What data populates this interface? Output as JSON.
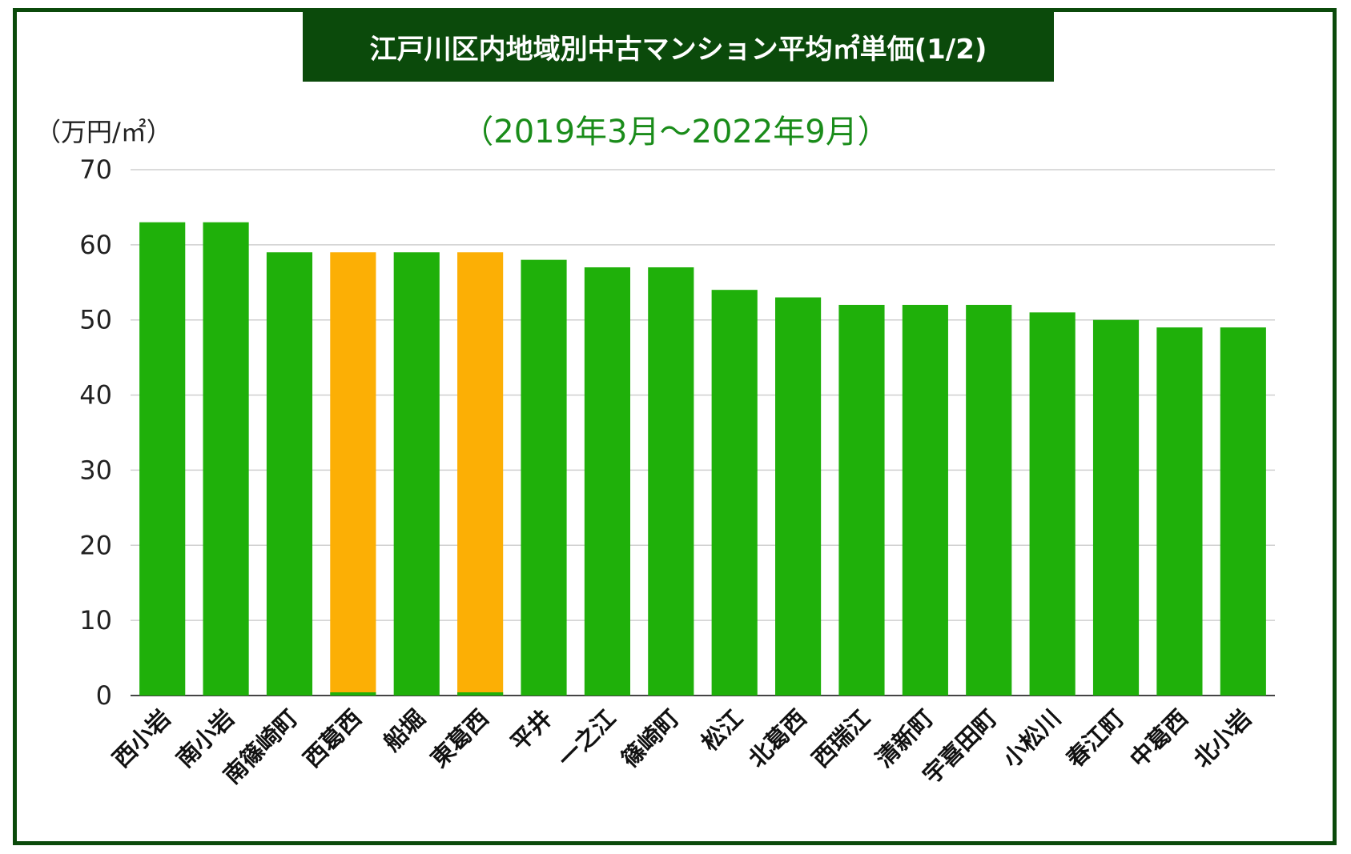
{
  "chart_data": {
    "type": "bar",
    "title": "江戸川区内地域別中古マンション平均㎡単価(1/2)",
    "subtitle": "（2019年3月〜2022年9月）",
    "ylabel": "（万円/㎡）",
    "ylim": [
      0,
      70
    ],
    "yticks": [
      "0",
      "10",
      "20",
      "30",
      "40",
      "50",
      "60",
      "70"
    ],
    "grid": true,
    "categories": [
      "西小岩",
      "南小岩",
      "南篠崎町",
      "西葛西",
      "船堀",
      "東葛西",
      "平井",
      "一之江",
      "篠崎町",
      "松江",
      "北葛西",
      "西瑞江",
      "清新町",
      "宇喜田町",
      "小松川",
      "春江町",
      "中葛西",
      "北小岩"
    ],
    "values": [
      63,
      63,
      59,
      59,
      59,
      59,
      58,
      57,
      57,
      54,
      53,
      52,
      52,
      52,
      51,
      50,
      49,
      49
    ],
    "highlight": [
      "西葛西",
      "東葛西"
    ],
    "colors": {
      "default": "#1fb00a",
      "highlight": "#fcaf05"
    }
  }
}
